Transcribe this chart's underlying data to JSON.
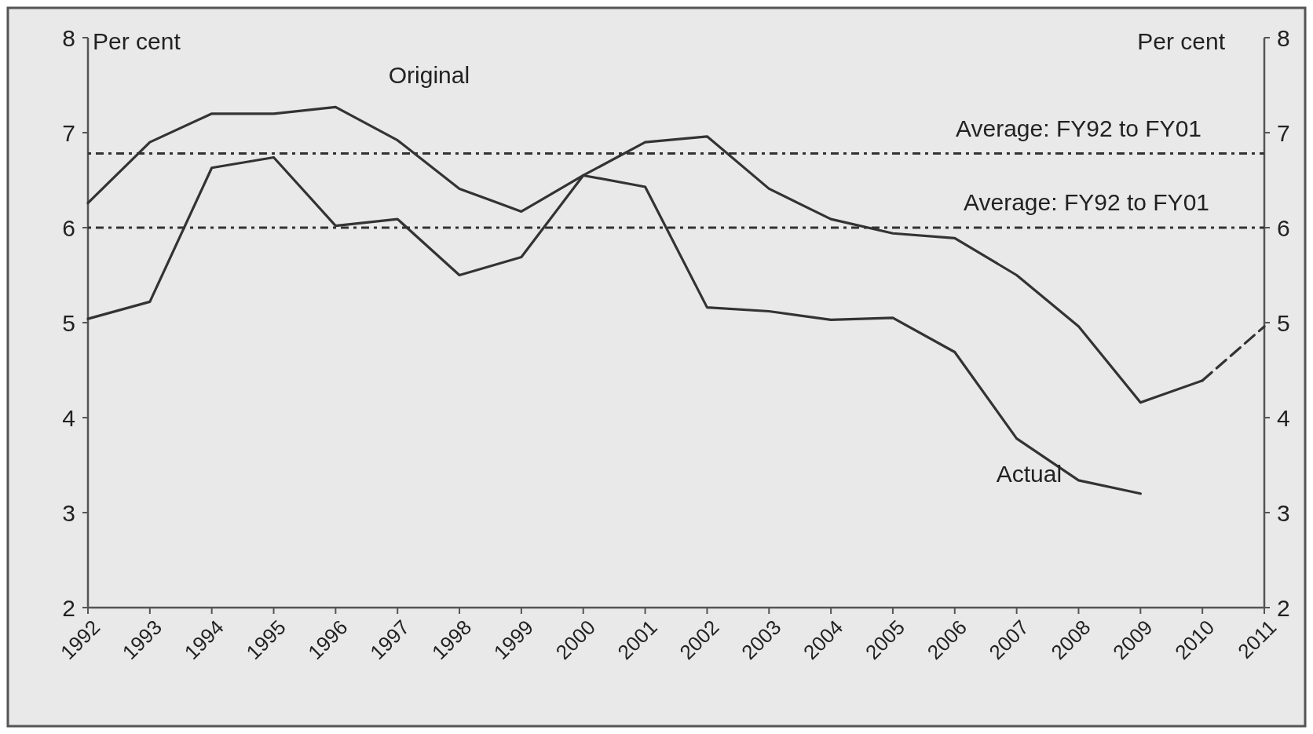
{
  "chart_data": {
    "type": "line",
    "ylabel": "Per cent",
    "y2label": "Per cent",
    "categories": [
      "1992",
      "1993",
      "1994",
      "1995",
      "1996",
      "1997",
      "1998",
      "1999",
      "2000",
      "2001",
      "2002",
      "2003",
      "2004",
      "2005",
      "2006",
      "2007",
      "2008",
      "2009",
      "2010",
      "2011"
    ],
    "series": [
      {
        "name": "Original",
        "color": "#333333",
        "line_style": "solid",
        "values": [
          6.26,
          6.9,
          7.2,
          7.2,
          7.27,
          6.92,
          6.41,
          6.17,
          6.55,
          6.9,
          6.96,
          6.41,
          6.09,
          5.94,
          5.89,
          5.5,
          4.96,
          4.16,
          4.39,
          null
        ]
      },
      {
        "color": "#333333",
        "line_style": "dashed",
        "values": [
          null,
          null,
          null,
          null,
          null,
          null,
          null,
          null,
          null,
          null,
          null,
          null,
          null,
          null,
          null,
          null,
          null,
          null,
          4.39,
          4.96
        ]
      },
      {
        "name": "Actual",
        "color": "#333333",
        "line_style": "solid",
        "values": [
          5.04,
          5.22,
          6.63,
          6.74,
          6.02,
          6.09,
          5.5,
          5.69,
          6.55,
          6.43,
          5.16,
          5.12,
          5.03,
          5.05,
          4.69,
          3.78,
          3.34,
          3.2,
          null,
          null
        ]
      }
    ],
    "ylim": [
      2,
      8
    ],
    "yticks": [
      2,
      3,
      4,
      5,
      6,
      7,
      8
    ],
    "y2lim": [
      2,
      8
    ],
    "y2ticks": [
      2,
      3,
      4,
      5,
      6,
      7,
      8
    ],
    "ref_lines": [
      {
        "axis": "y",
        "value": 6.78,
        "label": "Average: FY92 to FY01",
        "line_style": "dotted",
        "color": "#333333"
      },
      {
        "axis": "y",
        "value": 6.0,
        "label": "Average: FY92 to FY01",
        "line_style": "dotted",
        "color": "#333333"
      }
    ],
    "grid": false,
    "legend": false,
    "marker": "none"
  }
}
